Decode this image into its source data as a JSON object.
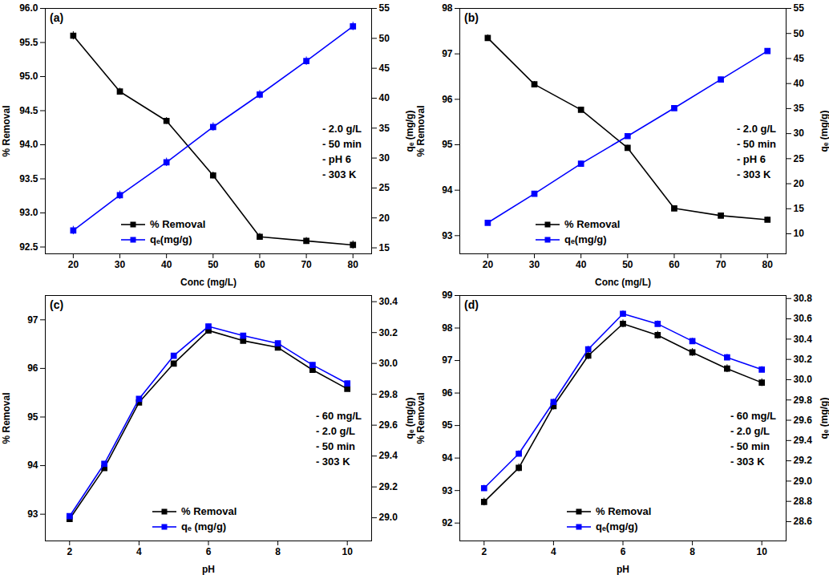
{
  "chart_data": [
    {
      "type": "line",
      "title": "(a)",
      "x_label": "Conc (mg/L)",
      "y_label": "% Removal",
      "y2_label": "qₑ (mg/g)",
      "annotations": [
        "- 2.0 g/L",
        "- 50 min",
        "- pH 6",
        "- 303 K"
      ],
      "x": [
        20,
        30,
        40,
        50,
        60,
        70,
        80
      ],
      "xlim": [
        14,
        84
      ],
      "xticks": [
        20,
        30,
        40,
        50,
        60,
        70,
        80
      ],
      "ylim": [
        92.4,
        96.0
      ],
      "yticks": [
        92.5,
        {
          "value": 93,
          "label": "93.0"
        },
        93.5,
        {
          "value": 94,
          "label": "94.0"
        },
        94.5,
        {
          "value": 95,
          "label": "95.0"
        },
        95.5,
        {
          "value": 96,
          "label": "96.0"
        }
      ],
      "y2lim": [
        14,
        55
      ],
      "y2ticks": [
        15,
        20,
        25,
        30,
        35,
        40,
        45,
        50,
        55
      ],
      "grid": false,
      "legend": "lower left",
      "series": [
        {
          "name": "% Removal",
          "color": "#000000",
          "marker": "square",
          "line_style": "solid",
          "values": [
            95.6,
            94.78,
            94.35,
            93.55,
            92.65,
            92.59,
            92.53
          ],
          "errors": [
            0.06,
            0.05,
            0.05,
            0.05,
            0.05,
            0.05,
            0.06
          ]
        },
        {
          "name": "qₑ(mg/g)",
          "color": "#0000ff",
          "marker": "square",
          "line_style": "solid",
          "axis": "y2",
          "values": [
            17.9,
            23.8,
            29.3,
            35.2,
            40.6,
            46.2,
            52.0
          ],
          "errors": [
            0.7,
            0.7,
            0.7,
            0.7,
            0.7,
            0.7,
            0.7
          ]
        }
      ]
    },
    {
      "type": "line",
      "title": "(b)",
      "x_label": "Conc (mg/L)",
      "y_label": "% Removal",
      "y2_label": "qₑ (mg/g)",
      "annotations": [
        "- 2.0 g/L",
        "- 50 min",
        "- pH 6",
        "- 303 K"
      ],
      "x": [
        20,
        30,
        40,
        50,
        60,
        70,
        80
      ],
      "xlim": [
        14,
        84
      ],
      "xticks": [
        20,
        30,
        40,
        50,
        60,
        70,
        80
      ],
      "ylim": [
        92.6,
        98.0
      ],
      "yticks": [
        93,
        94,
        95,
        96,
        97,
        98
      ],
      "y2lim": [
        6,
        55
      ],
      "y2ticks": [
        10,
        15,
        20,
        25,
        30,
        35,
        40,
        45,
        50,
        55
      ],
      "grid": false,
      "legend": "lower left",
      "series": [
        {
          "name": "% Removal",
          "color": "#000000",
          "marker": "square",
          "line_style": "solid",
          "values": [
            97.35,
            96.33,
            95.77,
            94.93,
            93.6,
            93.44,
            93.35
          ],
          "errors": [
            0.07,
            0.06,
            0.06,
            0.06,
            0.05,
            0.06,
            0.06
          ]
        },
        {
          "name": "qₑ(mg/g)",
          "color": "#0000ff",
          "marker": "square",
          "line_style": "solid",
          "axis": "y2",
          "values": [
            12.2,
            18.0,
            24.0,
            29.5,
            35.1,
            40.8,
            46.5
          ],
          "errors": [
            0.5,
            0.5,
            0.5,
            0.5,
            0.5,
            0.5,
            0.5
          ]
        }
      ]
    },
    {
      "type": "line",
      "title": "(c)",
      "x_label": "pH",
      "y_label": "% Removal",
      "y2_label": "qₑ (mg/g)",
      "annotations": [
        "- 60 mg/L",
        "- 2.0 g/L",
        "- 50 min",
        "- 303 K"
      ],
      "x": [
        2,
        3,
        4,
        5,
        6,
        7,
        8,
        9,
        10
      ],
      "xlim": [
        1.3,
        10.7
      ],
      "xticks": [
        2,
        4,
        6,
        8,
        10
      ],
      "ylim": [
        92.45,
        97.5
      ],
      "yticks": [
        93,
        94,
        95,
        96,
        97
      ],
      "y2lim": [
        28.85,
        30.44
      ],
      "y2ticks": [
        {
          "value": 29,
          "label": "29.0"
        },
        29.2,
        29.4,
        29.6,
        29.8,
        {
          "value": 30,
          "label": "30.0"
        },
        30.2,
        30.4
      ],
      "grid": false,
      "legend": "lower center",
      "series": [
        {
          "name": "% Removal",
          "color": "#000000",
          "marker": "square",
          "line_style": "solid",
          "values": [
            92.9,
            93.95,
            95.3,
            96.1,
            96.78,
            96.57,
            96.43,
            95.97,
            95.58
          ],
          "errors": [
            0.05,
            0.05,
            0.05,
            0.05,
            0.05,
            0.05,
            0.05,
            0.05,
            0.05
          ]
        },
        {
          "name": "qₑ (mg/g)",
          "color": "#0000ff",
          "marker": "square",
          "line_style": "solid",
          "axis": "y2",
          "values": [
            29.01,
            29.35,
            29.77,
            30.05,
            30.24,
            30.18,
            30.13,
            29.99,
            29.87
          ],
          "errors": [
            0.015,
            0.015,
            0.015,
            0.015,
            0.015,
            0.015,
            0.015,
            0.015,
            0.015
          ]
        }
      ]
    },
    {
      "type": "line",
      "title": "(d)",
      "x_label": "pH",
      "y_label": "% Removal",
      "y2_label": "qₑ (mg/g)",
      "annotations": [
        "- 60 mg/L",
        "- 2.0 g/L",
        "- 50 min",
        "- 303 K"
      ],
      "x": [
        2,
        3,
        4,
        5,
        6,
        7,
        8,
        9,
        10
      ],
      "xlim": [
        1.3,
        10.7
      ],
      "xticks": [
        2,
        4,
        6,
        8,
        10
      ],
      "ylim": [
        91.45,
        99.0
      ],
      "yticks": [
        92,
        93,
        94,
        95,
        96,
        97,
        98,
        99
      ],
      "y2lim": [
        28.41,
        30.83
      ],
      "y2ticks": [
        28.6,
        28.8,
        {
          "value": 29,
          "label": "29.0"
        },
        29.2,
        29.4,
        29.6,
        29.8,
        {
          "value": 30,
          "label": "30.0"
        },
        30.2,
        30.4,
        30.6,
        30.8
      ],
      "grid": false,
      "legend": "lower center",
      "series": [
        {
          "name": "% Removal",
          "color": "#000000",
          "marker": "square",
          "line_style": "solid",
          "values": [
            92.65,
            93.7,
            95.6,
            97.15,
            98.13,
            97.78,
            97.25,
            96.75,
            96.32
          ],
          "errors": [
            0.12,
            0.12,
            0.12,
            0.12,
            0.12,
            0.12,
            0.12,
            0.12,
            0.12
          ]
        },
        {
          "name": "qₑ(mg/g)",
          "color": "#0000ff",
          "marker": "square",
          "line_style": "solid",
          "axis": "y2",
          "values": [
            28.93,
            29.27,
            29.78,
            30.3,
            30.65,
            30.55,
            30.38,
            30.22,
            30.1
          ],
          "errors": [
            0.03,
            0.03,
            0.03,
            0.03,
            0.03,
            0.03,
            0.03,
            0.03,
            0.03
          ]
        }
      ]
    }
  ]
}
